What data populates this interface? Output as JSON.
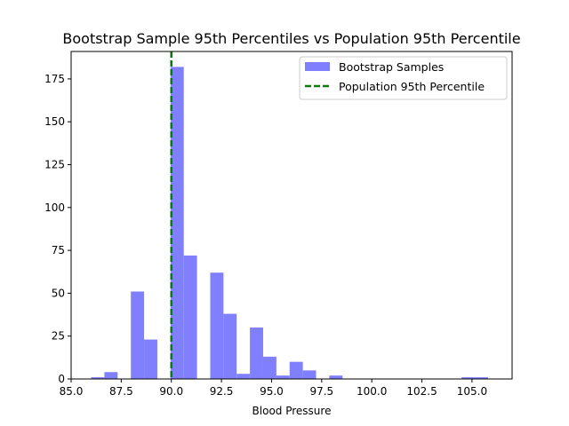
{
  "chart_data": {
    "type": "bar",
    "title": "Bootstrap Sample 95th Percentiles vs Population 95th Percentile",
    "xlabel": "Blood Pressure",
    "ylabel": "",
    "xlim": [
      85.0,
      107.0
    ],
    "ylim": [
      0,
      191
    ],
    "xticks": [
      85.0,
      87.5,
      90.0,
      92.5,
      95.0,
      97.5,
      100.0,
      102.5,
      105.0
    ],
    "xtick_labels": [
      "85.0",
      "87.5",
      "90.0",
      "92.5",
      "95.0",
      "97.5",
      "100.0",
      "102.5",
      "105.0"
    ],
    "yticks": [
      0,
      25,
      50,
      75,
      100,
      125,
      150,
      175
    ],
    "ytick_labels": [
      "0",
      "25",
      "50",
      "75",
      "100",
      "125",
      "150",
      "175"
    ],
    "grid": false,
    "legend_position": "top-right",
    "series": [
      {
        "name": "Bootstrap Samples",
        "kind": "histogram",
        "color": "#8080ff",
        "bins": [
          {
            "x0": 86.0,
            "x1": 86.66,
            "value": 1
          },
          {
            "x0": 86.66,
            "x1": 87.32,
            "value": 4
          },
          {
            "x0": 87.98,
            "x1": 88.64,
            "value": 51
          },
          {
            "x0": 88.64,
            "x1": 89.3,
            "value": 23
          },
          {
            "x0": 89.96,
            "x1": 90.62,
            "value": 182
          },
          {
            "x0": 90.62,
            "x1": 91.28,
            "value": 72
          },
          {
            "x0": 91.94,
            "x1": 92.6,
            "value": 62
          },
          {
            "x0": 92.6,
            "x1": 93.26,
            "value": 38
          },
          {
            "x0": 93.26,
            "x1": 93.92,
            "value": 3
          },
          {
            "x0": 93.92,
            "x1": 94.58,
            "value": 30
          },
          {
            "x0": 94.58,
            "x1": 95.24,
            "value": 13
          },
          {
            "x0": 95.24,
            "x1": 95.9,
            "value": 2
          },
          {
            "x0": 95.9,
            "x1": 96.56,
            "value": 10
          },
          {
            "x0": 96.56,
            "x1": 97.22,
            "value": 5
          },
          {
            "x0": 97.88,
            "x1": 98.54,
            "value": 2
          },
          {
            "x0": 104.48,
            "x1": 105.14,
            "value": 1
          },
          {
            "x0": 105.14,
            "x1": 105.8,
            "value": 1
          }
        ]
      },
      {
        "name": "Population 95th Percentile",
        "kind": "vline",
        "color": "#008000",
        "x": 90.0
      }
    ]
  }
}
